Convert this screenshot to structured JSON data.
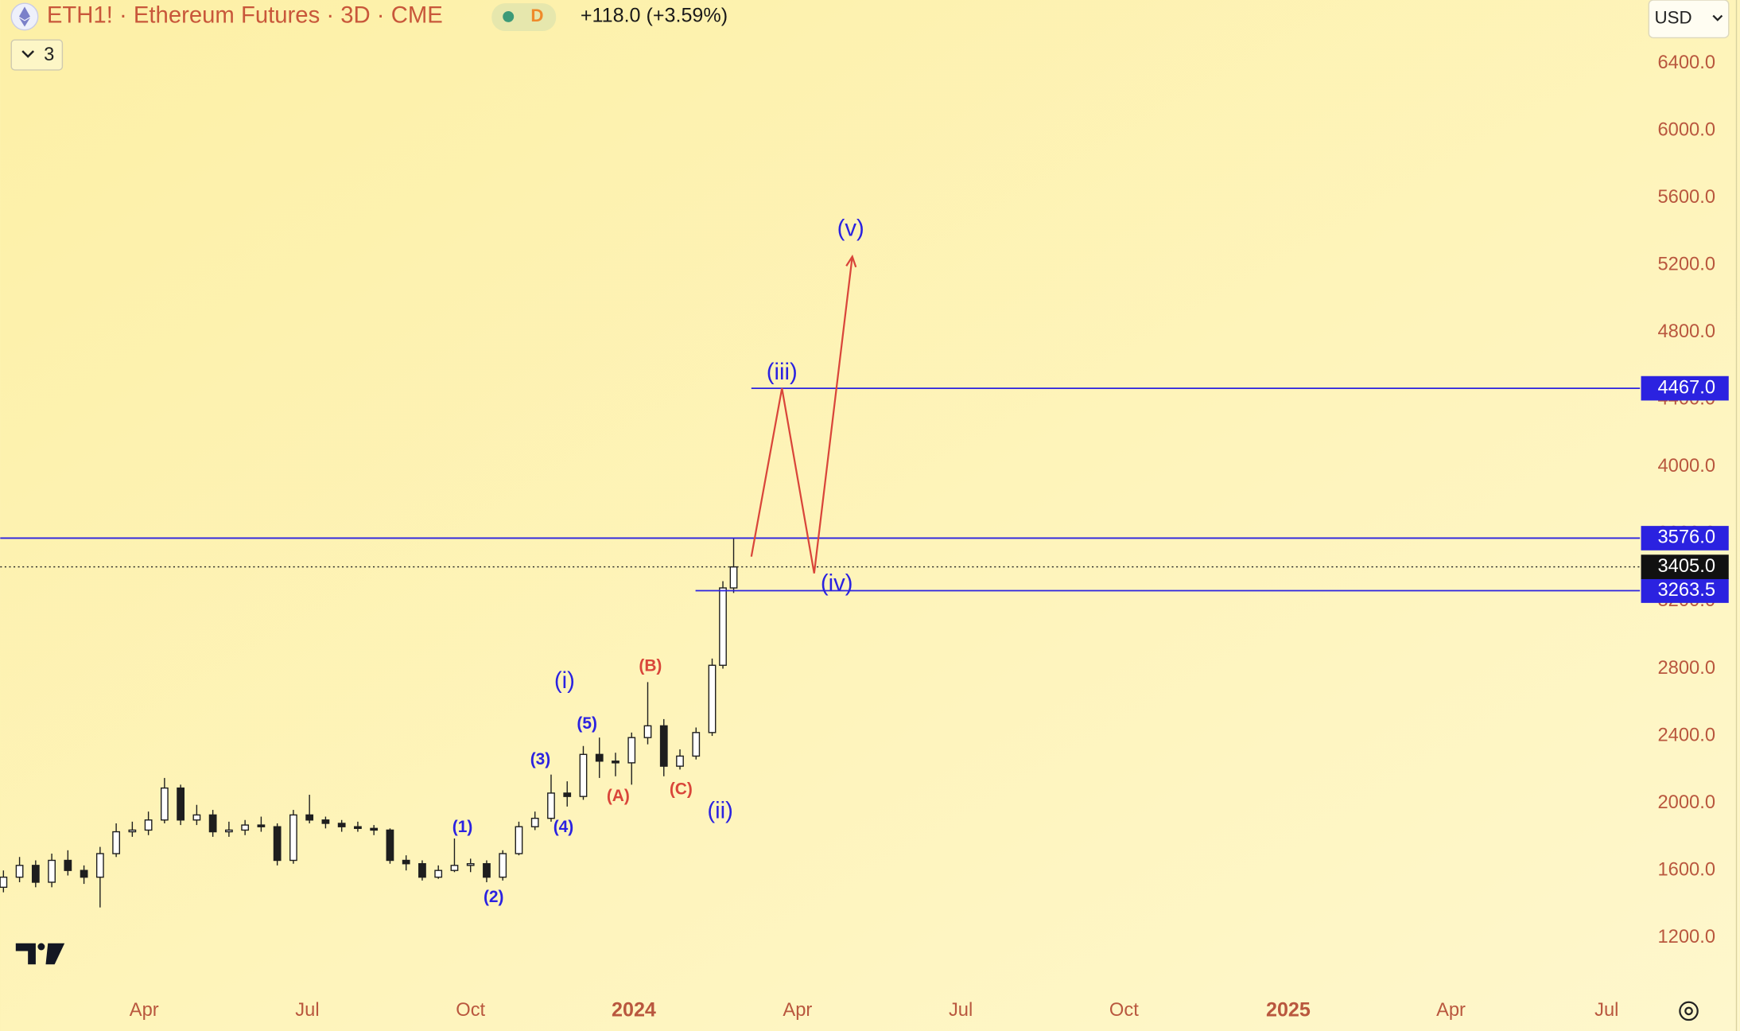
{
  "chart_data": {
    "type": "candlestick",
    "title": "ETH1! · Ethereum Futures · 3D · CME",
    "interval_badge": "D",
    "change": "+118.0 (+3.59%)",
    "indicator_count": "3",
    "currency": "USD",
    "x": [
      0,
      3,
      6,
      9,
      12,
      15,
      18,
      21,
      24,
      27,
      30,
      33,
      36,
      39,
      42,
      45,
      48,
      51,
      54,
      57,
      60,
      63,
      66,
      69,
      72,
      75,
      78,
      81,
      84,
      87,
      90,
      93,
      96,
      99,
      102,
      105,
      108,
      111,
      114,
      117,
      120,
      123,
      126,
      129,
      132,
      134,
      136
    ],
    "open": [
      1500,
      1560,
      1630,
      1530,
      1660,
      1600,
      1560,
      1700,
      1830,
      1840,
      1900,
      2090,
      1900,
      1930,
      1830,
      1840,
      1870,
      1860,
      1660,
      1930,
      1900,
      1880,
      1860,
      1850,
      1840,
      1660,
      1640,
      1560,
      1600,
      1630,
      1640,
      1560,
      1700,
      1860,
      1910,
      2060,
      2040,
      2290,
      2250,
      2240,
      2390,
      2460,
      2220,
      2280,
      2420,
      2820,
      3280
    ],
    "high": [
      1600,
      1680,
      1660,
      1700,
      1720,
      1630,
      1740,
      1880,
      1890,
      1950,
      2150,
      2110,
      1990,
      1960,
      1890,
      1900,
      1920,
      1880,
      1960,
      2050,
      1920,
      1900,
      1890,
      1870,
      1850,
      1690,
      1660,
      1630,
      1790,
      1670,
      1660,
      1720,
      1890,
      1950,
      2170,
      2130,
      2340,
      2390,
      2300,
      2420,
      2720,
      2500,
      2320,
      2450,
      2860,
      3320,
      3580
    ],
    "low": [
      1470,
      1530,
      1500,
      1500,
      1570,
      1520,
      1380,
      1680,
      1800,
      1810,
      1880,
      1870,
      1870,
      1800,
      1800,
      1810,
      1830,
      1630,
      1640,
      1880,
      1850,
      1830,
      1830,
      1810,
      1640,
      1600,
      1540,
      1550,
      1590,
      1590,
      1530,
      1540,
      1690,
      1840,
      1890,
      1980,
      2020,
      2150,
      2160,
      2110,
      2350,
      2160,
      2200,
      2260,
      2400,
      2800,
      3250
    ],
    "close": [
      1560,
      1630,
      1530,
      1660,
      1600,
      1560,
      1700,
      1830,
      1840,
      1900,
      2090,
      1900,
      1930,
      1830,
      1840,
      1870,
      1860,
      1660,
      1930,
      1900,
      1880,
      1860,
      1850,
      1840,
      1660,
      1640,
      1560,
      1600,
      1630,
      1640,
      1560,
      1700,
      1860,
      1910,
      2060,
      2040,
      2290,
      2250,
      2240,
      2390,
      2460,
      2220,
      2280,
      2420,
      2820,
      3280,
      3405
    ],
    "up_color": "#ffffff",
    "down_color": "#1e1e1e",
    "xlim": [
      -0.6,
      304.8
    ],
    "ylim": [
      900,
      6780
    ],
    "xticks": [
      {
        "value": 26.2,
        "label": "Apr"
      },
      {
        "value": 56.6,
        "label": "Jul"
      },
      {
        "value": 87.0,
        "label": "Oct"
      },
      {
        "value": 117.4,
        "label": "2024"
      },
      {
        "value": 147.9,
        "label": "Apr"
      },
      {
        "value": 178.3,
        "label": "Jul"
      },
      {
        "value": 208.7,
        "label": "Oct"
      },
      {
        "value": 239.3,
        "label": "2025"
      },
      {
        "value": 269.6,
        "label": "Apr"
      },
      {
        "value": 298.6,
        "label": "Jul"
      }
    ],
    "yticks": [
      {
        "value": 1200,
        "label": "1200.0"
      },
      {
        "value": 1600,
        "label": "1600.0"
      },
      {
        "value": 2000,
        "label": "2000.0"
      },
      {
        "value": 2400,
        "label": "2400.0"
      },
      {
        "value": 2800,
        "label": "2800.0"
      },
      {
        "value": 3200,
        "label": "3200.0"
      },
      {
        "value": 3600,
        "label": "3600.0"
      },
      {
        "value": 4000,
        "label": "4000.0"
      },
      {
        "value": 4400,
        "label": "4400.0"
      },
      {
        "value": 4800,
        "label": "4800.0"
      },
      {
        "value": 5200,
        "label": "5200.0"
      },
      {
        "value": 5600,
        "label": "5600.0"
      },
      {
        "value": 6000,
        "label": "6000.0"
      },
      {
        "value": 6400,
        "label": "6400.0"
      }
    ],
    "grid": false,
    "hlines": [
      {
        "value": 4467,
        "label": "4467.0",
        "start": 139.3,
        "color": "#2b22e0"
      },
      {
        "value": 3576,
        "label": "3576.0",
        "start": -0.6,
        "color": "#2b22e0"
      },
      {
        "value": 3263.5,
        "label": "3263.5",
        "start": 128.9,
        "color": "#2b22e0"
      }
    ],
    "last_price": {
      "value": 3405,
      "label": "3405.0"
    },
    "projection": {
      "x": [
        139.3,
        145.0,
        151.0,
        158.1
      ],
      "y": [
        3466,
        4467,
        3367,
        5250
      ],
      "color": "#d9453a"
    },
    "annotations": [
      {
        "text": "(v)",
        "x": 157.8,
        "y": 5409,
        "color": "#2b22e0",
        "style": "wave"
      },
      {
        "text": "(iii)",
        "x": 145.0,
        "y": 4556,
        "color": "#2b22e0",
        "style": "wave"
      },
      {
        "text": "(iv)",
        "x": 155.2,
        "y": 3301,
        "color": "#2b22e0",
        "style": "wave"
      },
      {
        "text": "(i)",
        "x": 104.5,
        "y": 2720,
        "color": "#2b22e0",
        "style": "wave"
      },
      {
        "text": "(ii)",
        "x": 133.5,
        "y": 1947,
        "color": "#2b22e0",
        "style": "wave"
      },
      {
        "text": "(B)",
        "x": 120.5,
        "y": 2812,
        "color": "#d9453a",
        "style": "minor"
      },
      {
        "text": "(A)",
        "x": 114.5,
        "y": 2039,
        "color": "#d9453a",
        "style": "minor"
      },
      {
        "text": "(C)",
        "x": 126.2,
        "y": 2079,
        "color": "#d9453a",
        "style": "minor"
      },
      {
        "text": "(5)",
        "x": 108.7,
        "y": 2469,
        "color": "#2b22e0",
        "style": "minor"
      },
      {
        "text": "(3)",
        "x": 100.0,
        "y": 2257,
        "color": "#2b22e0",
        "style": "minor"
      },
      {
        "text": "(4)",
        "x": 104.3,
        "y": 1854,
        "color": "#2b22e0",
        "style": "minor"
      },
      {
        "text": "(1)",
        "x": 85.5,
        "y": 1854,
        "color": "#2b22e0",
        "style": "minor"
      },
      {
        "text": "(2)",
        "x": 91.3,
        "y": 1438,
        "color": "#2b22e0",
        "style": "minor"
      }
    ]
  }
}
